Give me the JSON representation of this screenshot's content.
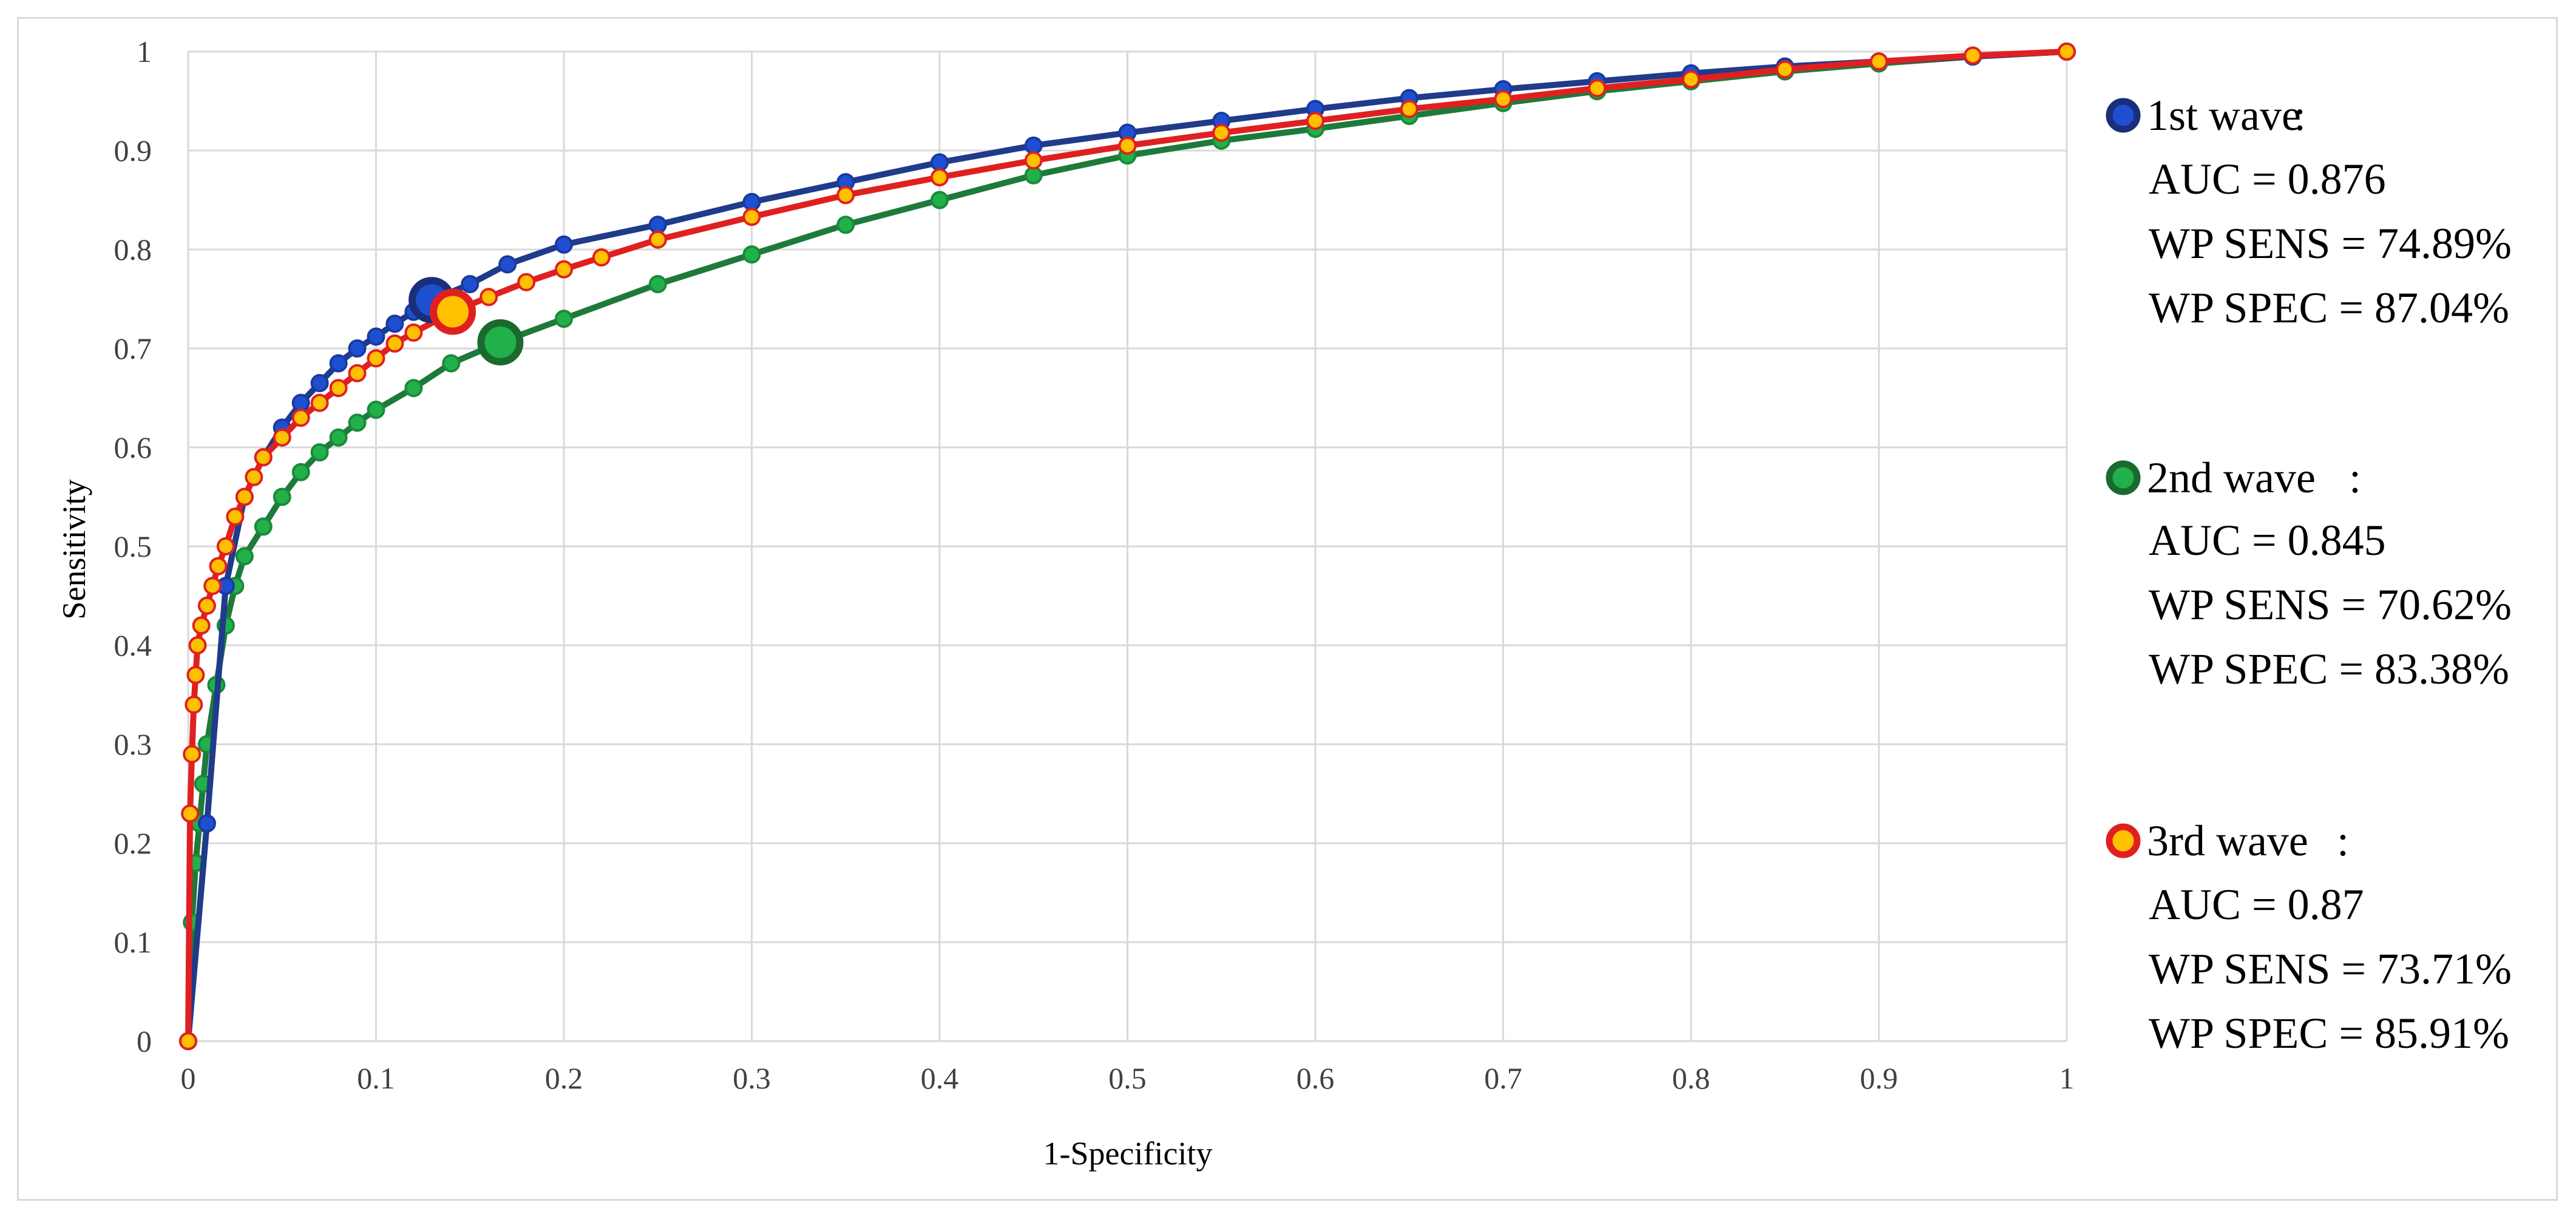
{
  "chart_data": {
    "type": "line",
    "title": "",
    "xlabel": "1-Specificity",
    "ylabel": "Sensitivity",
    "xlim": [
      0,
      1
    ],
    "ylim": [
      0,
      1
    ],
    "grid": true,
    "legend_position": "right",
    "x_ticks": [
      "0",
      "0.1",
      "0.2",
      "0.3",
      "0.4",
      "0.5",
      "0.6",
      "0.7",
      "0.8",
      "0.9",
      "1"
    ],
    "y_ticks": [
      "0",
      "0.1",
      "0.2",
      "0.3",
      "0.4",
      "0.5",
      "0.6",
      "0.7",
      "0.8",
      "0.9",
      "1"
    ],
    "series": [
      {
        "name": "1st wave",
        "line_color": "#1f3b8a",
        "marker_fill": "#1f4fd1",
        "marker_edge": "#1a3aa0",
        "auc_label": "AUC = 0.876",
        "sens_label": "WP SENS = 74.89%",
        "spec_label": "WP SPEC = 87.04%",
        "working_point": [
          0.1296,
          0.7489
        ],
        "x": [
          0,
          0.01,
          0.02,
          0.03,
          0.04,
          0.05,
          0.06,
          0.07,
          0.08,
          0.09,
          0.1,
          0.11,
          0.12,
          0.13,
          0.15,
          0.17,
          0.2,
          0.25,
          0.3,
          0.35,
          0.4,
          0.45,
          0.5,
          0.55,
          0.6,
          0.65,
          0.7,
          0.75,
          0.8,
          0.85,
          0.9,
          0.95,
          1.0
        ],
        "y": [
          0,
          0.22,
          0.46,
          0.55,
          0.59,
          0.62,
          0.645,
          0.665,
          0.685,
          0.7,
          0.712,
          0.725,
          0.737,
          0.749,
          0.765,
          0.785,
          0.805,
          0.825,
          0.848,
          0.868,
          0.888,
          0.905,
          0.918,
          0.93,
          0.942,
          0.953,
          0.962,
          0.97,
          0.978,
          0.985,
          0.99,
          0.995,
          1.0
        ]
      },
      {
        "name": "2nd wave",
        "line_color": "#1e7a3a",
        "marker_fill": "#22b04b",
        "marker_edge": "#1a8a3a",
        "auc_label": "AUC = 0.845",
        "sens_label": "WP SENS = 70.62%",
        "spec_label": "WP SPEC = 83.38%",
        "working_point": [
          0.1662,
          0.7062
        ],
        "x": [
          0,
          0.002,
          0.004,
          0.006,
          0.008,
          0.01,
          0.015,
          0.02,
          0.025,
          0.03,
          0.04,
          0.05,
          0.06,
          0.07,
          0.08,
          0.09,
          0.1,
          0.12,
          0.14,
          0.1662,
          0.2,
          0.25,
          0.3,
          0.35,
          0.4,
          0.45,
          0.5,
          0.55,
          0.6,
          0.65,
          0.7,
          0.75,
          0.8,
          0.85,
          0.9,
          0.95,
          1.0
        ],
        "y": [
          0,
          0.12,
          0.18,
          0.22,
          0.26,
          0.3,
          0.36,
          0.42,
          0.46,
          0.49,
          0.52,
          0.55,
          0.575,
          0.595,
          0.61,
          0.625,
          0.638,
          0.66,
          0.685,
          0.7062,
          0.73,
          0.765,
          0.795,
          0.825,
          0.85,
          0.875,
          0.895,
          0.91,
          0.922,
          0.935,
          0.948,
          0.96,
          0.97,
          0.98,
          0.988,
          0.995,
          1.0
        ]
      },
      {
        "name": "3rd wave",
        "line_color": "#e02020",
        "marker_fill": "#ffc000",
        "marker_edge": "#e02020",
        "auc_label": "AUC = 0.87",
        "sens_label": "WP SENS = 73.71%",
        "spec_label": "WP SPEC = 85.91%",
        "working_point": [
          0.1409,
          0.7371
        ],
        "x": [
          0,
          0.001,
          0.002,
          0.003,
          0.004,
          0.005,
          0.007,
          0.01,
          0.013,
          0.016,
          0.02,
          0.025,
          0.03,
          0.035,
          0.04,
          0.05,
          0.06,
          0.07,
          0.08,
          0.09,
          0.1,
          0.11,
          0.12,
          0.1409,
          0.16,
          0.18,
          0.2,
          0.22,
          0.25,
          0.3,
          0.35,
          0.4,
          0.45,
          0.5,
          0.55,
          0.6,
          0.65,
          0.7,
          0.75,
          0.8,
          0.85,
          0.9,
          0.95,
          1.0
        ],
        "y": [
          0,
          0.23,
          0.29,
          0.34,
          0.37,
          0.4,
          0.42,
          0.44,
          0.46,
          0.48,
          0.5,
          0.53,
          0.55,
          0.57,
          0.59,
          0.61,
          0.63,
          0.645,
          0.66,
          0.675,
          0.69,
          0.705,
          0.716,
          0.7371,
          0.752,
          0.767,
          0.78,
          0.792,
          0.81,
          0.833,
          0.855,
          0.873,
          0.89,
          0.905,
          0.918,
          0.93,
          0.942,
          0.952,
          0.963,
          0.972,
          0.982,
          0.99,
          0.996,
          1.0
        ]
      }
    ]
  }
}
